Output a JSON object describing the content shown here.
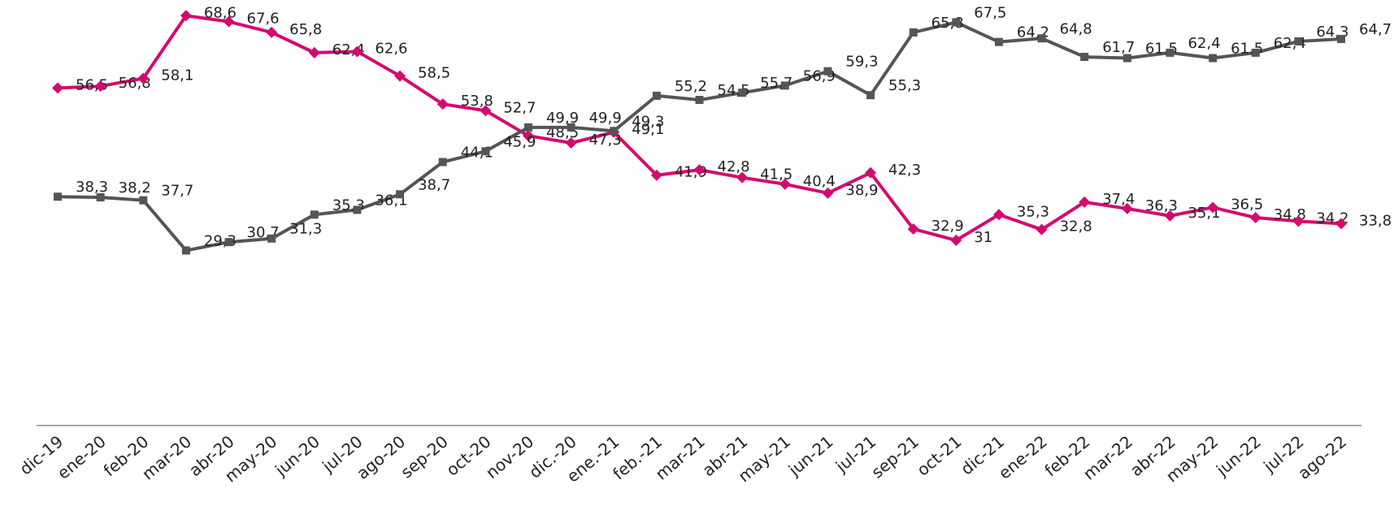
{
  "chart_data": {
    "type": "line",
    "categories": [
      "dic-19",
      "ene-20",
      "feb-20",
      "mar-20",
      "abr-20",
      "may-20",
      "jun-20",
      "jul-20",
      "ago-20",
      "sep-20",
      "oct-20",
      "nov-20",
      "dic.-20",
      "ene.-21",
      "feb.-21",
      "mar-21",
      "abr-21",
      "may-21",
      "jun-21",
      "jul-21",
      "sep-21",
      "oct-21",
      "dic-21",
      "ene-22",
      "feb-22",
      "mar-22",
      "abr-22",
      "may-22",
      "jun-22",
      "jul-22",
      "ago-22"
    ],
    "series": [
      {
        "color": "#d40a6e",
        "marker": "diamond",
        "values": [
          56.5,
          56.8,
          58.1,
          68.6,
          67.6,
          65.8,
          62.4,
          62.6,
          58.5,
          53.8,
          52.7,
          48.5,
          47.3,
          49.1,
          41.9,
          42.8,
          41.5,
          40.4,
          38.9,
          42.3,
          32.9,
          31,
          35.3,
          32.8,
          37.4,
          36.3,
          35.1,
          36.5,
          34.8,
          34.2,
          33.8
        ],
        "value_labels": [
          "56,5",
          "56,8",
          "58,1",
          "68,6",
          "67,6",
          "65,8",
          "62,4",
          "62,6",
          "58,5",
          "53,8",
          "52,7",
          "48,5",
          "47,3",
          "49,1",
          "41,9",
          "42,8",
          "41,5",
          "40,4",
          "38,9",
          "42,3",
          "32,9",
          "31",
          "35,3",
          "32,8",
          "37,4",
          "36,3",
          "35,1",
          "36,5",
          "34,8",
          "34,2",
          "33,8"
        ]
      },
      {
        "color": "#555555",
        "marker": "square",
        "values": [
          38.3,
          38.2,
          37.7,
          29.3,
          30.7,
          31.3,
          35.3,
          36.1,
          38.7,
          44.1,
          45.9,
          49.9,
          49.9,
          49.3,
          55.2,
          54.5,
          55.7,
          56.9,
          59.3,
          55.3,
          65.8,
          67.5,
          64.2,
          64.8,
          61.7,
          61.5,
          62.4,
          61.5,
          62.4,
          64.3,
          64.7
        ],
        "value_labels": [
          "38,3",
          "38,2",
          "37,7",
          "29,3",
          "30,7",
          "31,3",
          "35,3",
          "36,1",
          "38,7",
          "44,1",
          "45,9",
          "49,9",
          "49,9",
          "49,3",
          "55,2",
          "54,5",
          "55,7",
          "56,9",
          "59,3",
          "55,3",
          "65,8",
          "67,5",
          "64,2",
          "64,8",
          "61,7",
          "61,5",
          "62,4",
          "61,5",
          "62,4",
          "64,3",
          "64,7"
        ]
      }
    ],
    "ylim": [
      0,
      70
    ]
  }
}
